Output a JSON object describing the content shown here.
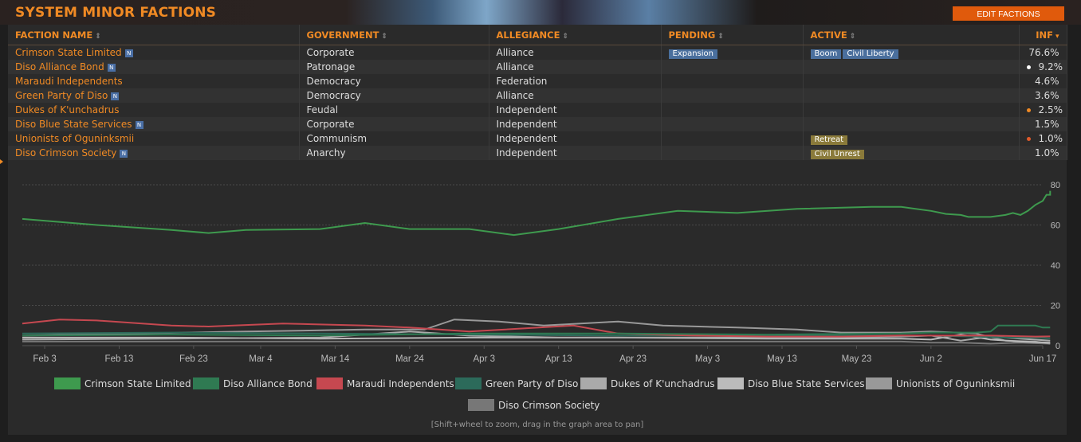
{
  "page": {
    "title": "SYSTEM MINOR FACTIONS",
    "edit_button": "EDIT FACTIONS",
    "hint": "[Shift+wheel to zoom, drag in the graph area to pan]"
  },
  "table": {
    "columns": [
      {
        "label": "FACTION NAME",
        "sort": "⇕"
      },
      {
        "label": "GOVERNMENT",
        "sort": "⇕"
      },
      {
        "label": "ALLEGIANCE",
        "sort": "⇕"
      },
      {
        "label": "PENDING",
        "sort": "⇕"
      },
      {
        "label": "ACTIVE",
        "sort": "⇕"
      },
      {
        "label": "INF",
        "sort": "▾"
      }
    ],
    "n_icon": "N",
    "rows": [
      {
        "name": "Crimson State Limited",
        "has_n": true,
        "government": "Corporate",
        "allegiance": "Alliance",
        "pending": [
          "Expansion"
        ],
        "active": [
          "Boom",
          "Civil Liberty"
        ],
        "active_style": "blue",
        "dot": "",
        "inf": "76.6%"
      },
      {
        "name": "Diso Alliance Bond",
        "has_n": true,
        "government": "Patronage",
        "allegiance": "Alliance",
        "pending": [],
        "active": [],
        "active_style": "blue",
        "dot": "#ffffff",
        "inf": "9.2%"
      },
      {
        "name": "Maraudi Independents",
        "has_n": false,
        "government": "Democracy",
        "allegiance": "Federation",
        "pending": [],
        "active": [],
        "active_style": "blue",
        "dot": "",
        "inf": "4.6%"
      },
      {
        "name": "Green Party of Diso",
        "has_n": true,
        "government": "Democracy",
        "allegiance": "Alliance",
        "pending": [],
        "active": [],
        "active_style": "blue",
        "dot": "",
        "inf": "3.6%"
      },
      {
        "name": "Dukes of K'unchadrus",
        "has_n": false,
        "government": "Feudal",
        "allegiance": "Independent",
        "pending": [],
        "active": [],
        "active_style": "blue",
        "dot": "#f08a24",
        "inf": "2.5%"
      },
      {
        "name": "Diso Blue State Services",
        "has_n": true,
        "government": "Corporate",
        "allegiance": "Independent",
        "pending": [],
        "active": [],
        "active_style": "blue",
        "dot": "",
        "inf": "1.5%"
      },
      {
        "name": "Unionists of Oguninksmii",
        "has_n": false,
        "government": "Communism",
        "allegiance": "Independent",
        "pending": [],
        "active": [
          "Retreat"
        ],
        "active_style": "gold",
        "dot": "#e05a2a",
        "inf": "1.0%"
      },
      {
        "name": "Diso Crimson Society",
        "has_n": true,
        "government": "Anarchy",
        "allegiance": "Independent",
        "pending": [],
        "active": [
          "Civil Unrest"
        ],
        "active_style": "gold",
        "dot": "",
        "inf": "1.0%"
      }
    ]
  },
  "chart_data": {
    "type": "line",
    "ylim": [
      0,
      80
    ],
    "y_ticks": [
      0,
      20,
      40,
      60,
      80
    ],
    "x_range_days": [
      0,
      137
    ],
    "x_ticks": [
      {
        "label": "Feb 3",
        "day": 3
      },
      {
        "label": "Feb 13",
        "day": 13
      },
      {
        "label": "Feb 23",
        "day": 23
      },
      {
        "label": "Mar 4",
        "day": 32
      },
      {
        "label": "Mar 14",
        "day": 42
      },
      {
        "label": "Mar 24",
        "day": 52
      },
      {
        "label": "Apr 3",
        "day": 62
      },
      {
        "label": "Apr 13",
        "day": 72
      },
      {
        "label": "Apr 23",
        "day": 82
      },
      {
        "label": "May 3",
        "day": 92
      },
      {
        "label": "May 13",
        "day": 102
      },
      {
        "label": "May 23",
        "day": 112
      },
      {
        "label": "Jun 2",
        "day": 122
      },
      {
        "label": "Jun 17",
        "day": 137
      }
    ],
    "grid": true,
    "legend_position": "bottom",
    "series": [
      {
        "name": "Crimson State Limited",
        "color": "#3e9a4e",
        "points": [
          [
            0,
            63
          ],
          [
            10,
            60
          ],
          [
            20,
            57.5
          ],
          [
            25,
            56
          ],
          [
            30,
            57.5
          ],
          [
            40,
            58
          ],
          [
            46,
            61
          ],
          [
            52,
            58
          ],
          [
            60,
            58
          ],
          [
            66,
            55
          ],
          [
            72,
            58
          ],
          [
            80,
            63
          ],
          [
            88,
            67
          ],
          [
            96,
            66
          ],
          [
            104,
            68
          ],
          [
            114,
            69
          ],
          [
            118,
            69
          ],
          [
            122,
            67
          ],
          [
            124,
            65.5
          ],
          [
            126,
            65
          ],
          [
            127,
            64
          ],
          [
            129,
            64
          ],
          [
            130,
            64
          ],
          [
            132,
            65
          ],
          [
            133,
            66
          ],
          [
            134,
            65
          ],
          [
            135,
            67
          ],
          [
            136,
            70
          ],
          [
            137,
            72
          ],
          [
            137.5,
            75
          ],
          [
            138,
            75
          ],
          [
            138,
            77
          ]
        ]
      },
      {
        "name": "Diso Alliance Bond",
        "color": "#2f7a52",
        "points": [
          [
            0,
            5
          ],
          [
            20,
            5.5
          ],
          [
            40,
            5
          ],
          [
            60,
            6
          ],
          [
            80,
            6
          ],
          [
            100,
            5.5
          ],
          [
            118,
            6
          ],
          [
            122,
            6.5
          ],
          [
            128,
            6.5
          ],
          [
            130,
            7
          ],
          [
            131,
            10
          ],
          [
            136,
            10
          ],
          [
            137,
            9
          ],
          [
            138,
            9
          ]
        ]
      },
      {
        "name": "Maraudi Independents",
        "color": "#c64850",
        "points": [
          [
            0,
            11
          ],
          [
            5,
            13
          ],
          [
            10,
            12.5
          ],
          [
            20,
            10
          ],
          [
            25,
            9.5
          ],
          [
            35,
            11
          ],
          [
            46,
            10
          ],
          [
            52,
            9
          ],
          [
            60,
            7
          ],
          [
            74,
            10
          ],
          [
            80,
            6
          ],
          [
            90,
            5
          ],
          [
            100,
            4.5
          ],
          [
            110,
            4.5
          ],
          [
            118,
            5
          ],
          [
            122,
            5
          ],
          [
            130,
            5
          ],
          [
            136,
            4.5
          ],
          [
            138,
            4.6
          ]
        ]
      },
      {
        "name": "Green Party of Diso",
        "color": "#2c6a5a",
        "points": [
          [
            0,
            6
          ],
          [
            20,
            6.5
          ],
          [
            40,
            6
          ],
          [
            60,
            5.5
          ],
          [
            80,
            5
          ],
          [
            100,
            5
          ],
          [
            118,
            5
          ],
          [
            122,
            5
          ],
          [
            128,
            4.5
          ],
          [
            132,
            4
          ],
          [
            136,
            4
          ],
          [
            138,
            3.6
          ]
        ]
      },
      {
        "name": "Dukes of K'unchadrus",
        "color": "#aaaaaa",
        "points": [
          [
            0,
            3
          ],
          [
            20,
            3.5
          ],
          [
            40,
            4
          ],
          [
            52,
            7
          ],
          [
            60,
            5
          ],
          [
            72,
            4
          ],
          [
            84,
            4
          ],
          [
            96,
            4
          ],
          [
            108,
            4
          ],
          [
            118,
            4.5
          ],
          [
            122,
            5
          ],
          [
            126,
            2.5
          ],
          [
            130,
            4.5
          ],
          [
            134,
            3.5
          ],
          [
            138,
            2.5
          ]
        ]
      },
      {
        "name": "Diso Blue State Services",
        "color": "#bbbbbb",
        "points": [
          [
            0,
            4
          ],
          [
            20,
            4
          ],
          [
            40,
            3.5
          ],
          [
            60,
            4
          ],
          [
            80,
            4
          ],
          [
            100,
            3.5
          ],
          [
            118,
            3.5
          ],
          [
            122,
            3
          ],
          [
            126,
            5.5
          ],
          [
            130,
            3
          ],
          [
            134,
            2
          ],
          [
            138,
            1.5
          ]
        ]
      },
      {
        "name": "Unionists of Oguninksmii",
        "color": "#999999",
        "points": [
          [
            0,
            5
          ],
          [
            15,
            6
          ],
          [
            30,
            7
          ],
          [
            46,
            8
          ],
          [
            54,
            8
          ],
          [
            58,
            13
          ],
          [
            64,
            12
          ],
          [
            70,
            10
          ],
          [
            80,
            12
          ],
          [
            86,
            10
          ],
          [
            96,
            9
          ],
          [
            104,
            8
          ],
          [
            110,
            6.5
          ],
          [
            118,
            6.5
          ],
          [
            122,
            7
          ],
          [
            128,
            6
          ],
          [
            132,
            2.5
          ],
          [
            136,
            2
          ],
          [
            138,
            1
          ]
        ]
      },
      {
        "name": "Diso Crimson Society",
        "color": "#777777",
        "points": [
          [
            0,
            2
          ],
          [
            20,
            2
          ],
          [
            40,
            2
          ],
          [
            60,
            2
          ],
          [
            80,
            2
          ],
          [
            100,
            2
          ],
          [
            118,
            2
          ],
          [
            122,
            1.5
          ],
          [
            126,
            1.5
          ],
          [
            130,
            1
          ],
          [
            134,
            1.5
          ],
          [
            138,
            1
          ]
        ]
      }
    ]
  }
}
